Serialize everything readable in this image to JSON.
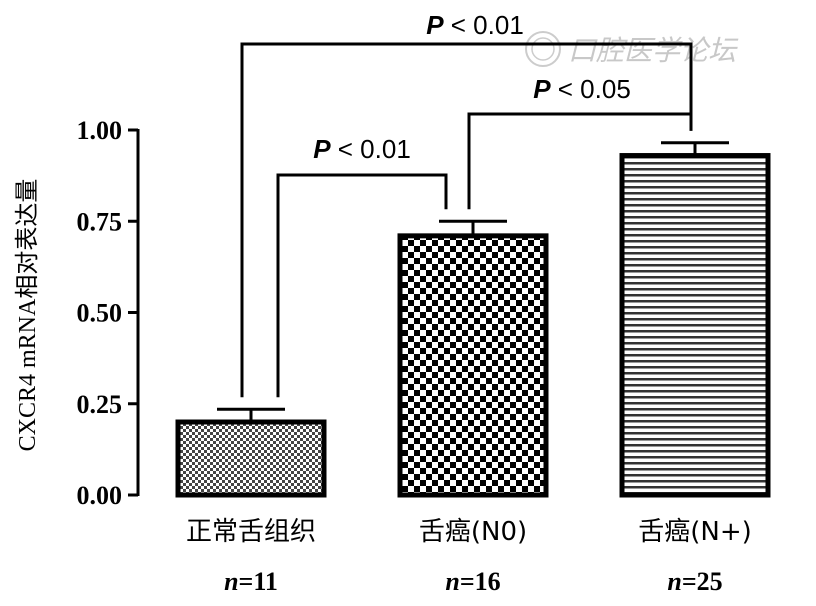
{
  "chart_data": {
    "type": "bar",
    "ylabel": "CXCR4 mRNA相对表达量",
    "ylim": [
      0,
      1.0
    ],
    "yticks": [
      "0.00",
      "0.25",
      "0.50",
      "0.75",
      "1.00"
    ],
    "categories": [
      "正常舌组织",
      "舌癌(N0)",
      "舌癌(N+)"
    ],
    "n_labels": [
      {
        "n": "n",
        "eq": "=11"
      },
      {
        "n": "n",
        "eq": "=16"
      },
      {
        "n": "n",
        "eq": "=25"
      }
    ],
    "values": [
      0.2,
      0.71,
      0.93
    ],
    "errors": [
      0.035,
      0.04,
      0.035
    ],
    "patterns": [
      "fine-checker",
      "coarse-checker",
      "horizontal-lines"
    ],
    "significance": [
      {
        "from": 0,
        "to": 1,
        "p": "P",
        "text": " < 0.01"
      },
      {
        "from": 1,
        "to": 2,
        "p": "P",
        "text": " < 0.05"
      },
      {
        "from": 0,
        "to": 2,
        "p": "P",
        "text": " < 0.01"
      }
    ]
  },
  "watermark": "口腔医学论坛"
}
